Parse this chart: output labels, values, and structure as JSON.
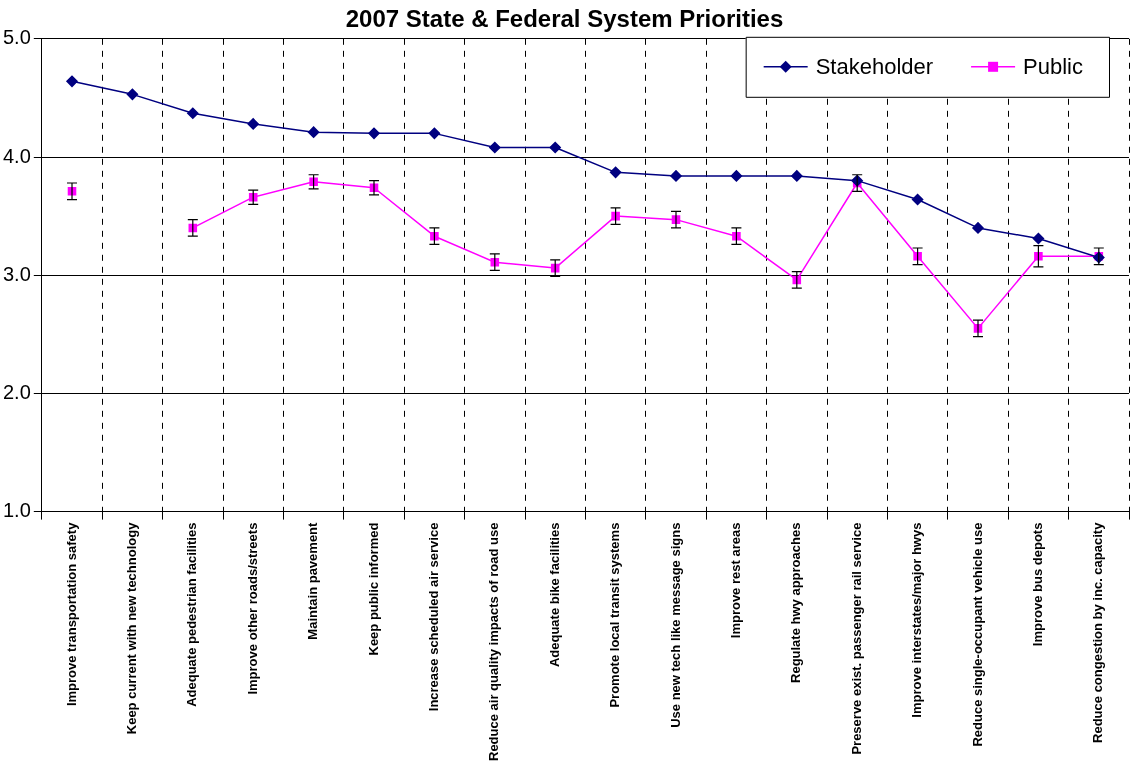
{
  "chart_data": {
    "type": "line",
    "title": "2007 State & Federal System Priorities",
    "categories": [
      "Improve transportation safety",
      "Keep current with new technology",
      "Adequate pedestrian facilities",
      "Improve other roads/streets",
      "Maintain pavement",
      "Keep public informed",
      "Increase scheduled air service",
      "Reduce air quality impacts of road use",
      "Adequate bike facilities",
      "Promote local transit systems",
      "Use new tech like message signs",
      "Improve rest areas",
      "Regulate hwy approaches",
      "Preserve exist. passenger rail service",
      "Improve interstates/major hwys",
      "Reduce single-occupant vehicle use",
      "Improve bus depots",
      "Reduce congestion by inc. capacity"
    ],
    "series": [
      {
        "name": "Stakeholder",
        "color": "#000080",
        "marker": "diamond",
        "values": [
          4.64,
          4.53,
          4.37,
          4.28,
          4.21,
          4.2,
          4.2,
          4.08,
          4.08,
          3.87,
          3.84,
          3.84,
          3.84,
          3.8,
          3.64,
          3.4,
          3.31,
          3.15
        ]
      },
      {
        "name": "Public",
        "color": "#ff00ff",
        "marker": "square",
        "values": [
          3.71,
          null,
          3.4,
          3.66,
          3.79,
          3.74,
          3.33,
          3.11,
          3.06,
          3.5,
          3.47,
          3.33,
          2.96,
          3.78,
          3.16,
          2.55,
          3.16,
          3.16
        ],
        "errors": [
          0.07,
          null,
          0.07,
          0.06,
          0.06,
          0.06,
          0.07,
          0.07,
          0.07,
          0.07,
          0.07,
          0.07,
          0.07,
          0.07,
          0.07,
          0.07,
          0.09,
          0.07
        ]
      }
    ],
    "ylim": [
      1,
      5
    ],
    "yticks": [
      {
        "value": 1,
        "label": "1.0"
      },
      {
        "value": 2,
        "label": "2.0"
      },
      {
        "value": 3,
        "label": "3.0"
      },
      {
        "value": 4,
        "label": "4.0"
      },
      {
        "value": 5,
        "label": "5.0"
      }
    ],
    "grid": true,
    "legend": "top right",
    "line_style": "solid"
  }
}
